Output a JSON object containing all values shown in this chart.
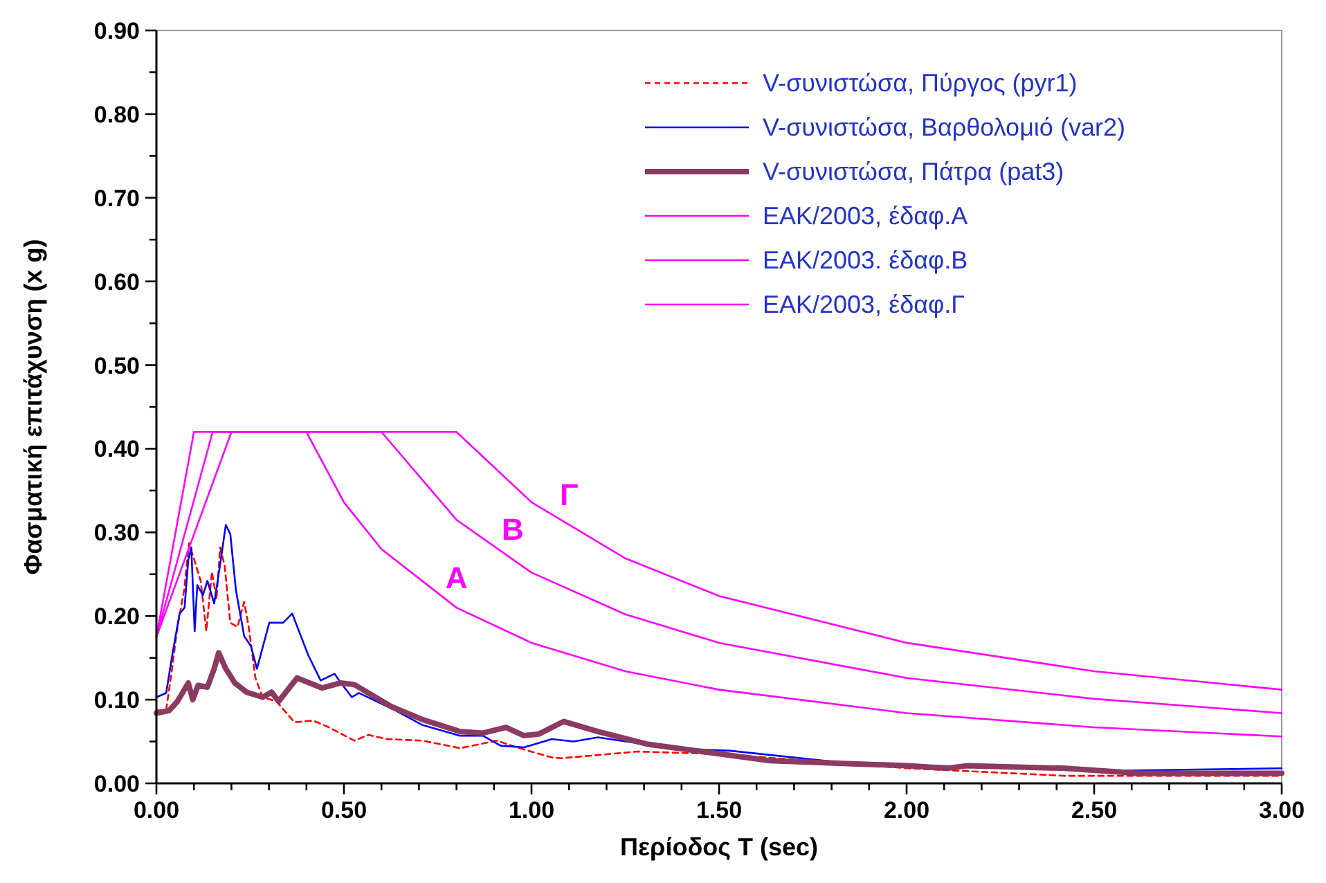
{
  "chart_data": {
    "type": "line",
    "xlabel": "Περίοδος T (sec)",
    "ylabel": "Φασματική επιτάχυνση (x g)",
    "xlim": [
      0,
      3
    ],
    "ylim": [
      0,
      0.9
    ],
    "xticks": [
      {
        "value": 0,
        "label": "0.00"
      },
      {
        "value": 0.1,
        "label": null
      },
      {
        "value": 0.2,
        "label": null
      },
      {
        "value": 0.3,
        "label": null
      },
      {
        "value": 0.4,
        "label": null
      },
      {
        "value": 0.5,
        "label": "0.50"
      },
      {
        "value": 0.6,
        "label": null
      },
      {
        "value": 0.7,
        "label": null
      },
      {
        "value": 0.8,
        "label": null
      },
      {
        "value": 0.9,
        "label": null
      },
      {
        "value": 1,
        "label": "1.00"
      },
      {
        "value": 1.1,
        "label": null
      },
      {
        "value": 1.2,
        "label": null
      },
      {
        "value": 1.3,
        "label": null
      },
      {
        "value": 1.4,
        "label": null
      },
      {
        "value": 1.5,
        "label": "1.50"
      },
      {
        "value": 1.6,
        "label": null
      },
      {
        "value": 1.7,
        "label": null
      },
      {
        "value": 1.8,
        "label": null
      },
      {
        "value": 1.9,
        "label": null
      },
      {
        "value": 2,
        "label": "2.00"
      },
      {
        "value": 2.1,
        "label": null
      },
      {
        "value": 2.2,
        "label": null
      },
      {
        "value": 2.3,
        "label": null
      },
      {
        "value": 2.4,
        "label": null
      },
      {
        "value": 2.5,
        "label": "2.50"
      },
      {
        "value": 2.6,
        "label": null
      },
      {
        "value": 2.7,
        "label": null
      },
      {
        "value": 2.8,
        "label": null
      },
      {
        "value": 2.9,
        "label": null
      },
      {
        "value": 3,
        "label": "3.00"
      }
    ],
    "yticks": [
      {
        "value": 0,
        "label": "0.00"
      },
      {
        "value": 0.05,
        "label": null
      },
      {
        "value": 0.1,
        "label": "0.10"
      },
      {
        "value": 0.15,
        "label": null
      },
      {
        "value": 0.2,
        "label": "0.20"
      },
      {
        "value": 0.25,
        "label": null
      },
      {
        "value": 0.3,
        "label": "0.30"
      },
      {
        "value": 0.35,
        "label": null
      },
      {
        "value": 0.4,
        "label": "0.40"
      },
      {
        "value": 0.45,
        "label": null
      },
      {
        "value": 0.5,
        "label": "0.50"
      },
      {
        "value": 0.55,
        "label": null
      },
      {
        "value": 0.6,
        "label": "0.60"
      },
      {
        "value": 0.65,
        "label": null
      },
      {
        "value": 0.7,
        "label": "0.70"
      },
      {
        "value": 0.75,
        "label": null
      },
      {
        "value": 0.8,
        "label": "0.80"
      },
      {
        "value": 0.85,
        "label": null
      },
      {
        "value": 0.9,
        "label": "0.90"
      }
    ],
    "grid": false,
    "legend": "top right",
    "series": [
      {
        "name": "V-συνιστώσα, Πύργος (pyr1)",
        "color": "#ff0000",
        "line_style": "dashed",
        "x": [
          0,
          0.026,
          0.04,
          0.056,
          0.074,
          0.087,
          0.099,
          0.118,
          0.133,
          0.148,
          0.16,
          0.17,
          0.182,
          0.197,
          0.216,
          0.234,
          0.246,
          0.264,
          0.283,
          0.32,
          0.368,
          0.418,
          0.46,
          0.528,
          0.565,
          0.613,
          0.71,
          0.81,
          0.907,
          0.968,
          1.054,
          1.079,
          1.282,
          1.506,
          2.004,
          2.423,
          3.0
        ],
        "values": [
          0.087,
          0.088,
          0.131,
          0.187,
          0.231,
          0.287,
          0.27,
          0.242,
          0.182,
          0.253,
          0.22,
          0.282,
          0.26,
          0.192,
          0.187,
          0.217,
          0.187,
          0.126,
          0.103,
          0.098,
          0.073,
          0.075,
          0.067,
          0.051,
          0.058,
          0.053,
          0.051,
          0.042,
          0.051,
          0.042,
          0.031,
          0.03,
          0.038,
          0.035,
          0.018,
          0.009,
          0.009
        ]
      },
      {
        "name": "V-συνιστώσα, Βαρθολομιό (var2)",
        "color": "#0000ff",
        "line_style": "solid",
        "x": [
          0,
          0.026,
          0.044,
          0.062,
          0.075,
          0.085,
          0.093,
          0.102,
          0.109,
          0.124,
          0.136,
          0.154,
          0.169,
          0.185,
          0.197,
          0.212,
          0.234,
          0.252,
          0.268,
          0.301,
          0.338,
          0.362,
          0.405,
          0.438,
          0.475,
          0.487,
          0.521,
          0.54,
          0.638,
          0.708,
          0.808,
          0.87,
          0.918,
          0.98,
          1.054,
          1.112,
          1.177,
          1.373,
          1.53,
          1.846,
          2.555,
          3.0
        ],
        "values": [
          0.103,
          0.108,
          0.158,
          0.203,
          0.21,
          0.267,
          0.282,
          0.182,
          0.237,
          0.225,
          0.242,
          0.215,
          0.259,
          0.309,
          0.298,
          0.231,
          0.176,
          0.164,
          0.137,
          0.192,
          0.192,
          0.203,
          0.153,
          0.123,
          0.131,
          0.123,
          0.103,
          0.108,
          0.087,
          0.07,
          0.057,
          0.057,
          0.045,
          0.043,
          0.053,
          0.05,
          0.055,
          0.042,
          0.039,
          0.024,
          0.015,
          0.018
        ]
      },
      {
        "name": "V-συνιστώσα, Πάτρα (pat3)",
        "color": "#8b3a62",
        "line_style": "solid",
        "x": [
          0,
          0.034,
          0.056,
          0.085,
          0.097,
          0.111,
          0.136,
          0.154,
          0.166,
          0.185,
          0.209,
          0.24,
          0.283,
          0.307,
          0.326,
          0.375,
          0.442,
          0.491,
          0.528,
          0.625,
          0.711,
          0.809,
          0.87,
          0.932,
          0.98,
          1.02,
          1.086,
          1.177,
          1.307,
          1.506,
          1.636,
          2.004,
          2.108,
          2.16,
          2.423,
          2.62,
          3.0
        ],
        "values": [
          0.084,
          0.087,
          0.098,
          0.12,
          0.1,
          0.117,
          0.115,
          0.137,
          0.156,
          0.137,
          0.12,
          0.109,
          0.103,
          0.109,
          0.098,
          0.126,
          0.114,
          0.12,
          0.118,
          0.092,
          0.076,
          0.062,
          0.06,
          0.067,
          0.057,
          0.059,
          0.074,
          0.062,
          0.047,
          0.035,
          0.027,
          0.021,
          0.018,
          0.021,
          0.018,
          0.012,
          0.012
        ]
      },
      {
        "name": "ΕΑΚ/2003, έδαφ.Α",
        "color": "#ff00ff",
        "line_style": "solid",
        "x": [
          0,
          0.1,
          0.4,
          0.5,
          0.6,
          0.8,
          1.0,
          1.25,
          1.5,
          2.0,
          2.5,
          3.0
        ],
        "values": [
          0.175,
          0.42,
          0.42,
          0.336,
          0.28,
          0.21,
          0.168,
          0.134,
          0.112,
          0.084,
          0.067,
          0.056
        ]
      },
      {
        "name": "ΕΑΚ/2003. έδαφ.Β",
        "color": "#ff00ff",
        "line_style": "solid",
        "x": [
          0,
          0.15,
          0.6,
          0.8,
          1.0,
          1.25,
          1.5,
          2.0,
          2.5,
          3.0
        ],
        "values": [
          0.175,
          0.42,
          0.42,
          0.315,
          0.252,
          0.202,
          0.168,
          0.126,
          0.101,
          0.084
        ]
      },
      {
        "name": "ΕΑΚ/2003, έδαφ.Γ",
        "color": "#ff00ff",
        "line_style": "solid",
        "x": [
          0,
          0.2,
          0.8,
          1.0,
          1.25,
          1.5,
          2.0,
          2.5,
          3.0
        ],
        "values": [
          0.175,
          0.42,
          0.42,
          0.336,
          0.269,
          0.224,
          0.168,
          0.134,
          0.112
        ]
      }
    ],
    "annotations": [
      "A",
      "B",
      "Γ"
    ]
  }
}
